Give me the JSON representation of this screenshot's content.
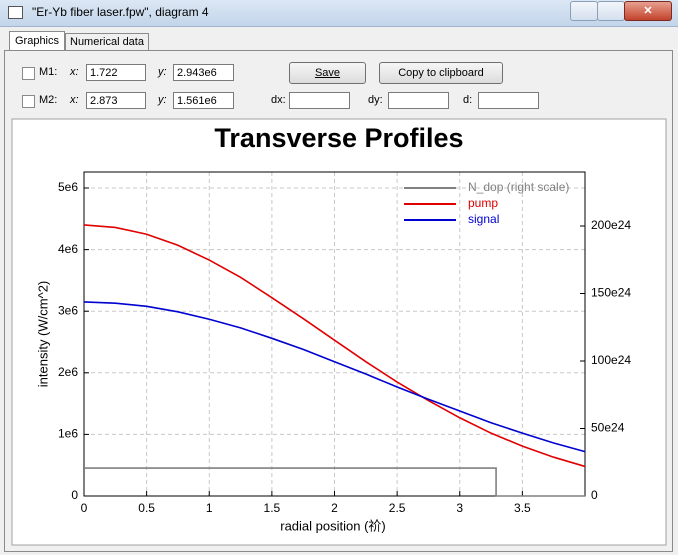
{
  "window": {
    "title": "\"Er-Yb fiber laser.fpw\", diagram 4"
  },
  "tabs": [
    "Graphics",
    "Numerical data"
  ],
  "markers": [
    {
      "label": "M1:",
      "x_label": "x:",
      "x": "1.722",
      "y_label": "y:",
      "y": "2.943e6"
    },
    {
      "label": "M2:",
      "x_label": "x:",
      "x": "2.873",
      "y_label": "y:",
      "y": "1.561e6"
    }
  ],
  "buttons": [
    "Save",
    "Copy to clipboard"
  ],
  "deltas": [
    "dx:",
    "dy:",
    "d:"
  ],
  "chart_data": {
    "type": "line",
    "title": "Transverse Profiles",
    "x_label": "radial position (祄)",
    "y_label": "intensity (W/cm^2)",
    "x": [
      0,
      0.25,
      0.5,
      0.75,
      1,
      1.25,
      1.5,
      1.75,
      2,
      2.25,
      2.5,
      2.75,
      3,
      3.25,
      3.5,
      3.75,
      4
    ],
    "series": [
      {
        "name": "N_dop (right scale)",
        "color": "#808080",
        "axis": "y2",
        "x": [
          0,
          3.29,
          3.29,
          4
        ],
        "values": [
          2.07e+25,
          2.07e+25,
          0,
          0
        ]
      },
      {
        "name": "pump",
        "color": "#e00000",
        "values": [
          4400000,
          4360000,
          4250000,
          4070000,
          3830000,
          3550000,
          3220000,
          2880000,
          2530000,
          2180000,
          1850000,
          1550000,
          1270000,
          1020000,
          810000,
          630000,
          480000
        ]
      },
      {
        "name": "signal",
        "color": "#0000d0",
        "values": [
          3150000,
          3130000,
          3080000,
          2990000,
          2870000,
          2730000,
          2560000,
          2380000,
          2180000,
          1980000,
          1770000,
          1570000,
          1380000,
          1190000,
          1020000,
          860000,
          720000
        ]
      }
    ],
    "xlim": [
      0,
      4
    ],
    "ylim": [
      0,
      5260000
    ],
    "y2lim": [
      0,
      2.4e+26
    ],
    "xticks": [
      0,
      0.5,
      1,
      1.5,
      2,
      2.5,
      3,
      3.5
    ],
    "yticks": [
      0,
      {
        "value": 1000000,
        "label": "1e6"
      },
      {
        "value": 2000000,
        "label": "2e6"
      },
      {
        "value": 3000000,
        "label": "3e6"
      },
      {
        "value": 4000000,
        "label": "4e6"
      },
      {
        "value": 5000000,
        "label": "5e6"
      }
    ],
    "y2ticks": [
      0,
      {
        "value": 5e+25,
        "label": "50e24"
      },
      {
        "value": 1e+26,
        "label": "100e24"
      },
      {
        "value": 1.5e+26,
        "label": "150e24"
      },
      {
        "value": 2e+26,
        "label": "200e24"
      }
    ],
    "grid": true,
    "legend": "upper right"
  }
}
